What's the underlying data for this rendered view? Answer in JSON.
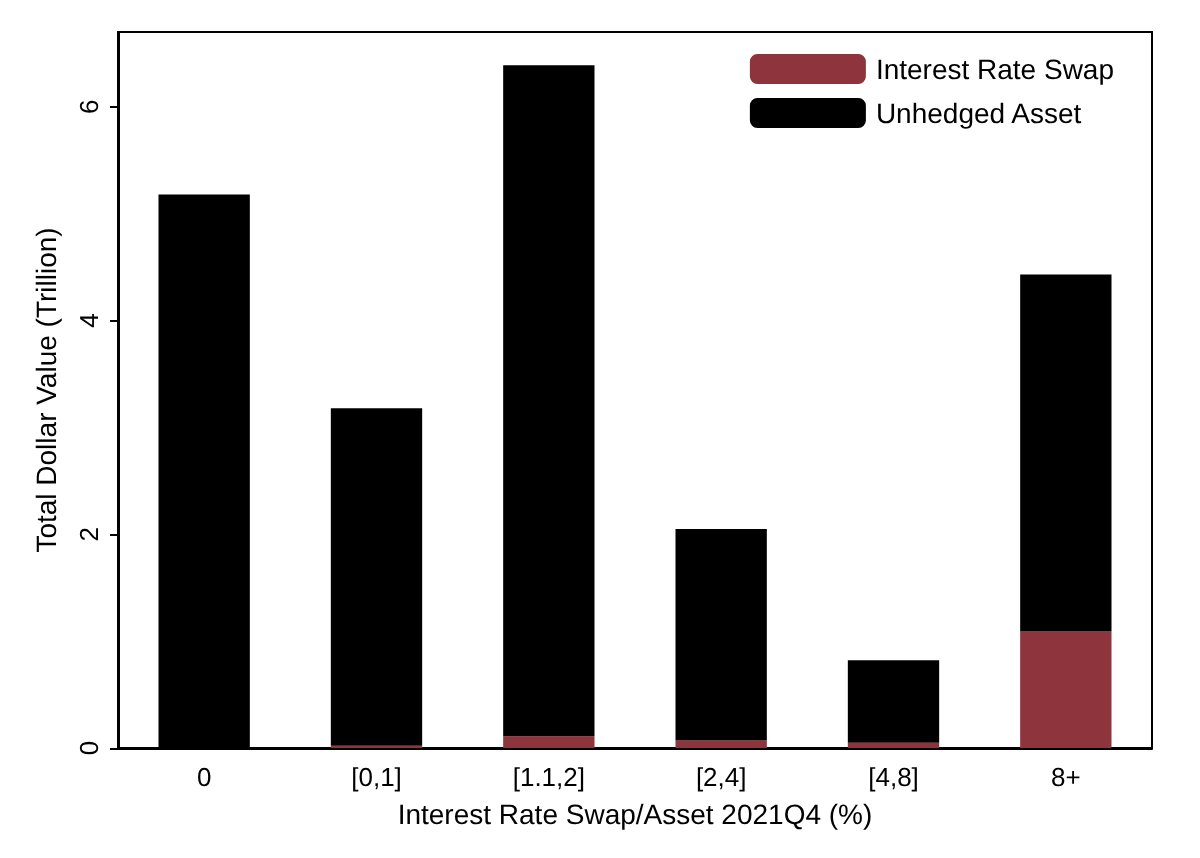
{
  "chart_data": {
    "type": "bar",
    "stacked": true,
    "xlabel": "Interest Rate Swap/Asset 2021Q4 (%)",
    "ylabel": "Total Dollar Value (Trillion)",
    "categories": [
      "0",
      "[0,1]",
      "[1.1,2]",
      "[2,4]",
      "[4,8]",
      "8+"
    ],
    "series": [
      {
        "name": "Interest Rate Swap",
        "color": "#8e343d",
        "values": [
          0,
          0.02,
          0.11,
          0.07,
          0.05,
          1.09
        ]
      },
      {
        "name": "Unhedged Asset",
        "color": "#000000",
        "values": [
          5.18,
          3.16,
          6.28,
          1.98,
          0.77,
          3.34
        ]
      }
    ],
    "ylim": [
      0,
      6.7
    ],
    "yticks": [
      0,
      2,
      4,
      6
    ],
    "grid": false,
    "legend": "top right"
  }
}
